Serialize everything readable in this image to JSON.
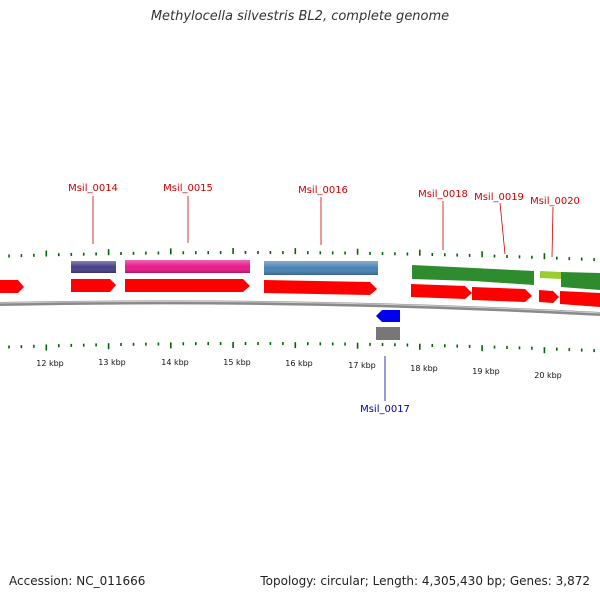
{
  "title": "Methylocella silvestris BL2, complete genome",
  "accession": "Accession: NC_011666",
  "summary": "Topology: circular; Length: 4,305,430 bp; Genes: 3,872",
  "tick_labels": [
    "12 kbp",
    "13 kbp",
    "14 kbp",
    "15 kbp",
    "16 kbp",
    "17 kbp",
    "18 kbp",
    "19 kbp",
    "20 kbp"
  ],
  "genes": [
    {
      "id": "Msil_0014",
      "strand": "+",
      "color": "#473f86",
      "label_color": "#cc0000"
    },
    {
      "id": "Msil_0015",
      "strand": "+",
      "color": "#e8198a",
      "label_color": "#cc0000"
    },
    {
      "id": "Msil_0016",
      "strand": "+",
      "color": "#4682b4",
      "label_color": "#cc0000"
    },
    {
      "id": "Msil_0017",
      "strand": "-",
      "color": "#0000ee",
      "label_color": "#0000aa"
    },
    {
      "id": "Msil_0018",
      "strand": "+",
      "color": "#2e8b2e",
      "label_color": "#cc0000"
    },
    {
      "id": "Msil_0019",
      "strand": "+",
      "color": "#2e8b2e",
      "label_color": "#cc0000"
    },
    {
      "id": "Msil_0020",
      "strand": "+",
      "color": "#9acd32",
      "label_color": "#cc0000"
    }
  ],
  "colors": {
    "cds": "#ff0000",
    "backbone": "#999999",
    "tick": "#006600",
    "gray_feature": "#777777"
  }
}
